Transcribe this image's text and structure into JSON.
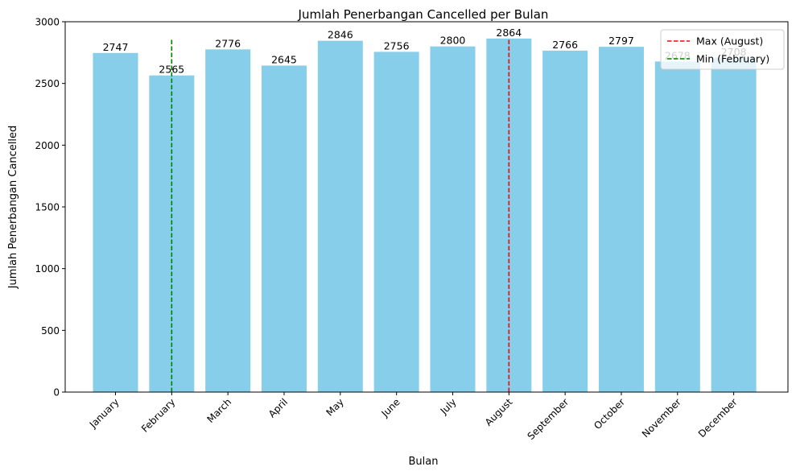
{
  "chart_data": {
    "type": "bar",
    "title": "Jumlah Penerbangan Cancelled per Bulan",
    "xlabel": "Bulan",
    "ylabel": "Jumlah Penerbangan Cancelled",
    "categories": [
      "January",
      "February",
      "March",
      "April",
      "May",
      "June",
      "July",
      "August",
      "September",
      "October",
      "November",
      "December"
    ],
    "values": [
      2747,
      2565,
      2776,
      2645,
      2846,
      2756,
      2800,
      2864,
      2766,
      2797,
      2678,
      2708
    ],
    "data_labels": [
      "2747",
      "2565",
      "2776",
      "2645",
      "2846",
      "2756",
      "2800",
      "2864",
      "2766",
      "2797",
      "2678",
      "2708"
    ],
    "ylim": [
      0,
      3000
    ],
    "yticks": [
      0,
      500,
      1000,
      1500,
      2000,
      2500,
      3000
    ],
    "bar_color": "#87CEEB",
    "grid": false,
    "legend_position": "top-right",
    "reference_lines": [
      {
        "label": "Max (August)",
        "category": "August",
        "y_from": 0,
        "y_to": 2864,
        "color": "#ff0000",
        "style": "dashed"
      },
      {
        "label": "Min (February)",
        "category": "February",
        "y_from": 0,
        "y_to": 2864,
        "color": "#008000",
        "style": "dashed"
      }
    ]
  }
}
